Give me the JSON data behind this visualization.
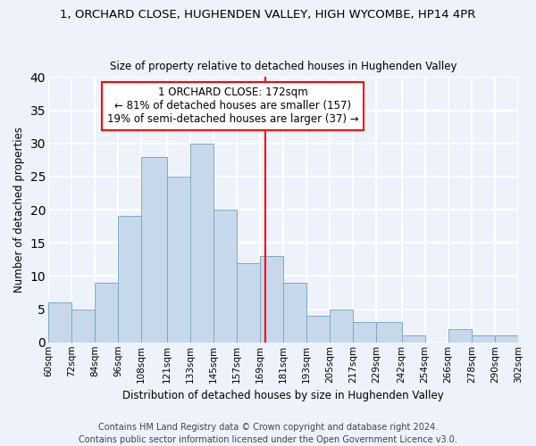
{
  "title": "1, ORCHARD CLOSE, HUGHENDEN VALLEY, HIGH WYCOMBE, HP14 4PR",
  "subtitle": "Size of property relative to detached houses in Hughenden Valley",
  "xlabel": "Distribution of detached houses by size in Hughenden Valley",
  "ylabel": "Number of detached properties",
  "bar_edges": [
    60,
    72,
    84,
    96,
    108,
    121,
    133,
    145,
    157,
    169,
    181,
    193,
    205,
    217,
    229,
    242,
    254,
    266,
    278,
    290,
    302
  ],
  "bar_heights": [
    6,
    5,
    9,
    19,
    28,
    25,
    30,
    20,
    12,
    13,
    9,
    4,
    5,
    3,
    3,
    1,
    0,
    2,
    1,
    1
  ],
  "bar_color": "#c8d8eb",
  "bar_edge_color": "#7aaac8",
  "property_line_x": 172,
  "annotation_text": "1 ORCHARD CLOSE: 172sqm\n← 81% of detached houses are smaller (157)\n19% of semi-detached houses are larger (37) →",
  "annotation_box_color": "white",
  "annotation_box_edge_color": "red",
  "vline_color": "red",
  "ylim": [
    0,
    40
  ],
  "yticks": [
    0,
    5,
    10,
    15,
    20,
    25,
    30,
    35,
    40
  ],
  "tick_labels": [
    "60sqm",
    "72sqm",
    "84sqm",
    "96sqm",
    "108sqm",
    "121sqm",
    "133sqm",
    "145sqm",
    "157sqm",
    "169sqm",
    "181sqm",
    "193sqm",
    "205sqm",
    "217sqm",
    "229sqm",
    "242sqm",
    "254sqm",
    "266sqm",
    "278sqm",
    "290sqm",
    "302sqm"
  ],
  "footer": "Contains HM Land Registry data © Crown copyright and database right 2024.\nContains public sector information licensed under the Open Government Licence v3.0.",
  "bg_color": "#eef2fb",
  "plot_bg_color": "#eef2fb",
  "grid_color": "#ffffff",
  "title_fontsize": 9.5,
  "subtitle_fontsize": 8.5,
  "xlabel_fontsize": 8.5,
  "ylabel_fontsize": 8.5,
  "footer_fontsize": 7,
  "tick_fontsize": 7.5,
  "ann_fontsize": 8.5
}
